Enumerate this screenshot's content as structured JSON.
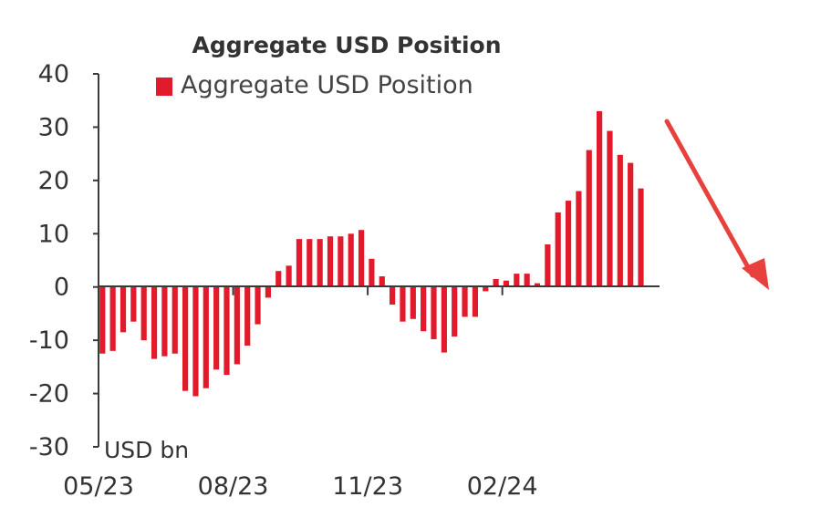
{
  "chart_data": {
    "type": "bar",
    "title": "Aggregate USD Position",
    "legend": [
      {
        "name": "Aggregate USD Position",
        "color": "#e21b2c"
      }
    ],
    "legend_placement": "top",
    "unit_label": "USD bn",
    "ylim": [
      -30,
      40
    ],
    "y_ticks": [
      {
        "value": 40,
        "label": "40"
      },
      {
        "value": 30,
        "label": "30"
      },
      {
        "value": 20,
        "label": "20"
      },
      {
        "value": 10,
        "label": "10"
      },
      {
        "value": 0,
        "label": "0"
      },
      {
        "value": -10,
        "label": "-10"
      },
      {
        "value": -20,
        "label": "-20"
      },
      {
        "value": -30,
        "label": "-30"
      }
    ],
    "x_ticks": [
      {
        "index": 0,
        "label": "05/23"
      },
      {
        "index": 13,
        "label": "08/23"
      },
      {
        "index": 26,
        "label": "11/23"
      },
      {
        "index": 39,
        "label": "02/24"
      }
    ],
    "grid": false,
    "series": [
      {
        "name": "Aggregate USD Position",
        "color": "#e21b2c",
        "values": [
          -12.5,
          -12,
          -8.5,
          -6.5,
          -10,
          -13.5,
          -13,
          -12.5,
          -19.5,
          -20.5,
          -19,
          -15.5,
          -16.5,
          -14.5,
          -11,
          -7,
          -2,
          3,
          4,
          9,
          9,
          9,
          9.5,
          9.5,
          10,
          10.7,
          5.3,
          2,
          -3.3,
          -6.5,
          -6,
          -8.3,
          -9.8,
          -12.3,
          -9.3,
          -5.6,
          -5.6,
          -0.8,
          1.5,
          1.2,
          2.5,
          2.5,
          0.7,
          8,
          14,
          16.2,
          18,
          25.7,
          33,
          29.3,
          24.8,
          23.3,
          18.5
        ]
      }
    ]
  }
}
